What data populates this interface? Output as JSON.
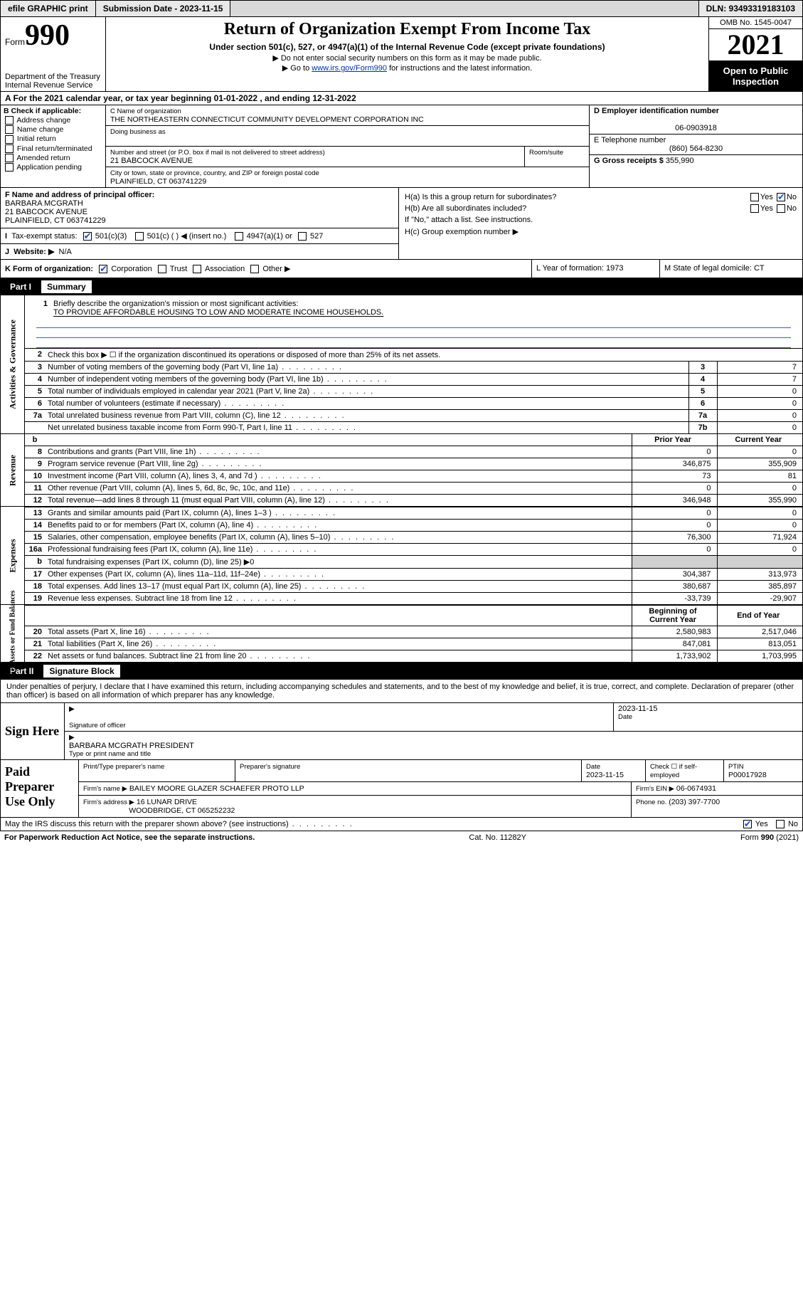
{
  "topbar": {
    "efile": "efile GRAPHIC print",
    "submission": "Submission Date - 2023-11-15",
    "dln": "DLN: 93493319183103"
  },
  "header": {
    "form_prefix": "Form",
    "form_no": "990",
    "dept": "Department of the Treasury",
    "irs": "Internal Revenue Service",
    "title": "Return of Organization Exempt From Income Tax",
    "sub": "Under section 501(c), 527, or 4947(a)(1) of the Internal Revenue Code (except private foundations)",
    "note1": "▶ Do not enter social security numbers on this form as it may be made public.",
    "note2_pre": "▶ Go to ",
    "note2_link": "www.irs.gov/Form990",
    "note2_post": " for instructions and the latest information.",
    "omb": "OMB No. 1545-0047",
    "year": "2021",
    "inspect1": "Open to Public",
    "inspect2": "Inspection"
  },
  "entity": {
    "A": "A For the 2021 calendar year, or tax year beginning 01-01-2022   , and ending 12-31-2022",
    "B_label": "B Check if applicable:",
    "B_items": [
      "Address change",
      "Name change",
      "Initial return",
      "Final return/terminated",
      "Amended return",
      "Application pending"
    ],
    "C_label": "C Name of organization",
    "C_name": "THE NORTHEASTERN CONNECTICUT COMMUNITY DEVELOPMENT CORPORATION INC",
    "dba_label": "Doing business as",
    "addr_label": "Number and street (or P.O. box if mail is not delivered to street address)",
    "room_label": "Room/suite",
    "addr": "21 BABCOCK AVENUE",
    "city_label": "City or town, state or province, country, and ZIP or foreign postal code",
    "city": "PLAINFIELD, CT  063741229",
    "D_label": "D Employer identification number",
    "D": "06-0903918",
    "E_label": "E Telephone number",
    "E": "(860) 564-8230",
    "G_label": "G Gross receipts $",
    "G": "355,990",
    "F_label": "F  Name and address of principal officer:",
    "F_name": "BARBARA MCGRATH",
    "F_addr1": "21 BABCOCK AVENUE",
    "F_addr2": "PLAINFIELD, CT  063741229",
    "Ha": "H(a)  Is this a group return for subordinates?",
    "Hb": "H(b)  Are all subordinates included?",
    "Hnote": "If \"No,\" attach a list. See instructions.",
    "Hc": "H(c)  Group exemption number ▶",
    "yes": "Yes",
    "no": "No",
    "I": "Tax-exempt status:",
    "I1": "501(c)(3)",
    "I2": "501(c) (   ) ◀ (insert no.)",
    "I3": "4947(a)(1) or",
    "I4": "527",
    "J_label": "Website: ▶",
    "J": "N/A",
    "K": "K Form of organization:",
    "K1": "Corporation",
    "K2": "Trust",
    "K3": "Association",
    "K4": "Other ▶",
    "L": "L Year of formation: 1973",
    "M": "M State of legal domicile: CT"
  },
  "partI": {
    "hdr": "Part I",
    "title": "Summary",
    "l1a": "Briefly describe the organization's mission or most significant activities:",
    "l1b": "TO PROVIDE AFFORDABLE HOUSING TO LOW AND MODERATE INCOME HOUSEHOLDS.",
    "l2": "Check this box ▶ ☐  if the organization discontinued its operations or disposed of more than 25% of its net assets.",
    "vtabs": {
      "gov": "Activities & Governance",
      "rev": "Revenue",
      "exp": "Expenses",
      "net": "Net Assets or\nFund Balances"
    },
    "rows_gov": [
      {
        "n": "3",
        "d": "Number of voting members of the governing body (Part VI, line 1a)",
        "box": "3",
        "v": "7"
      },
      {
        "n": "4",
        "d": "Number of independent voting members of the governing body (Part VI, line 1b)",
        "box": "4",
        "v": "7"
      },
      {
        "n": "5",
        "d": "Total number of individuals employed in calendar year 2021 (Part V, line 2a)",
        "box": "5",
        "v": "0"
      },
      {
        "n": "6",
        "d": "Total number of volunteers (estimate if necessary)",
        "box": "6",
        "v": "0"
      },
      {
        "n": "7a",
        "d": "Total unrelated business revenue from Part VIII, column (C), line 12",
        "box": "7a",
        "v": "0"
      },
      {
        "n": "",
        "d": "Net unrelated business taxable income from Form 990-T, Part I, line 11",
        "box": "7b",
        "v": "0"
      }
    ],
    "col_prior": "Prior Year",
    "col_curr": "Current Year",
    "rows_rev": [
      {
        "n": "8",
        "d": "Contributions and grants (Part VIII, line 1h)",
        "p": "0",
        "c": "0"
      },
      {
        "n": "9",
        "d": "Program service revenue (Part VIII, line 2g)",
        "p": "346,875",
        "c": "355,909"
      },
      {
        "n": "10",
        "d": "Investment income (Part VIII, column (A), lines 3, 4, and 7d )",
        "p": "73",
        "c": "81"
      },
      {
        "n": "11",
        "d": "Other revenue (Part VIII, column (A), lines 5, 6d, 8c, 9c, 10c, and 11e)",
        "p": "0",
        "c": "0"
      },
      {
        "n": "12",
        "d": "Total revenue—add lines 8 through 11 (must equal Part VIII, column (A), line 12)",
        "p": "346,948",
        "c": "355,990"
      }
    ],
    "rows_exp": [
      {
        "n": "13",
        "d": "Grants and similar amounts paid (Part IX, column (A), lines 1–3 )",
        "p": "0",
        "c": "0"
      },
      {
        "n": "14",
        "d": "Benefits paid to or for members (Part IX, column (A), line 4)",
        "p": "0",
        "c": "0"
      },
      {
        "n": "15",
        "d": "Salaries, other compensation, employee benefits (Part IX, column (A), lines 5–10)",
        "p": "76,300",
        "c": "71,924"
      },
      {
        "n": "16a",
        "d": "Professional fundraising fees (Part IX, column (A), line 11e)",
        "p": "0",
        "c": "0"
      },
      {
        "n": "b",
        "d": "Total fundraising expenses (Part IX, column (D), line 25) ▶0",
        "grey": true
      },
      {
        "n": "17",
        "d": "Other expenses (Part IX, column (A), lines 11a–11d, 11f–24e)",
        "p": "304,387",
        "c": "313,973"
      },
      {
        "n": "18",
        "d": "Total expenses. Add lines 13–17 (must equal Part IX, column (A), line 25)",
        "p": "380,687",
        "c": "385,897"
      },
      {
        "n": "19",
        "d": "Revenue less expenses. Subtract line 18 from line 12",
        "p": "-33,739",
        "c": "-29,907"
      }
    ],
    "col_begin": "Beginning of Current Year",
    "col_end": "End of Year",
    "rows_net": [
      {
        "n": "20",
        "d": "Total assets (Part X, line 16)",
        "p": "2,580,983",
        "c": "2,517,046"
      },
      {
        "n": "21",
        "d": "Total liabilities (Part X, line 26)",
        "p": "847,081",
        "c": "813,051"
      },
      {
        "n": "22",
        "d": "Net assets or fund balances. Subtract line 21 from line 20",
        "p": "1,733,902",
        "c": "1,703,995"
      }
    ]
  },
  "partII": {
    "hdr": "Part II",
    "title": "Signature Block",
    "declare": "Under penalties of perjury, I declare that I have examined this return, including accompanying schedules and statements, and to the best of my knowledge and belief, it is true, correct, and complete. Declaration of preparer (other than officer) is based on all information of which preparer has any knowledge.",
    "sign_here": "Sign Here",
    "sig_officer": "Signature of officer",
    "date": "Date",
    "sig_date": "2023-11-15",
    "officer": "BARBARA MCGRATH PRESIDENT",
    "type_name": "Type or print name and title",
    "paid": "Paid Preparer Use Only",
    "prep_name": "Print/Type preparer's name",
    "prep_sig": "Preparer's signature",
    "prep_date": "2023-11-15",
    "check_self": "Check ☐ if self-employed",
    "ptin_l": "PTIN",
    "ptin": "P00017928",
    "firm_name_l": "Firm's name   ▶",
    "firm_name": "BAILEY MOORE GLAZER SCHAEFER PROTO LLP",
    "firm_ein_l": "Firm's EIN ▶",
    "firm_ein": "06-0674931",
    "firm_addr_l": "Firm's address ▶",
    "firm_addr1": "16 LUNAR DRIVE",
    "firm_addr2": "WOODBRIDGE, CT  065252232",
    "phone_l": "Phone no.",
    "phone": "(203) 397-7700",
    "may": "May the IRS discuss this return with the preparer shown above? (see instructions)",
    "pra": "For Paperwork Reduction Act Notice, see the separate instructions.",
    "cat": "Cat. No. 11282Y",
    "formfoot": "Form 990 (2021)"
  }
}
